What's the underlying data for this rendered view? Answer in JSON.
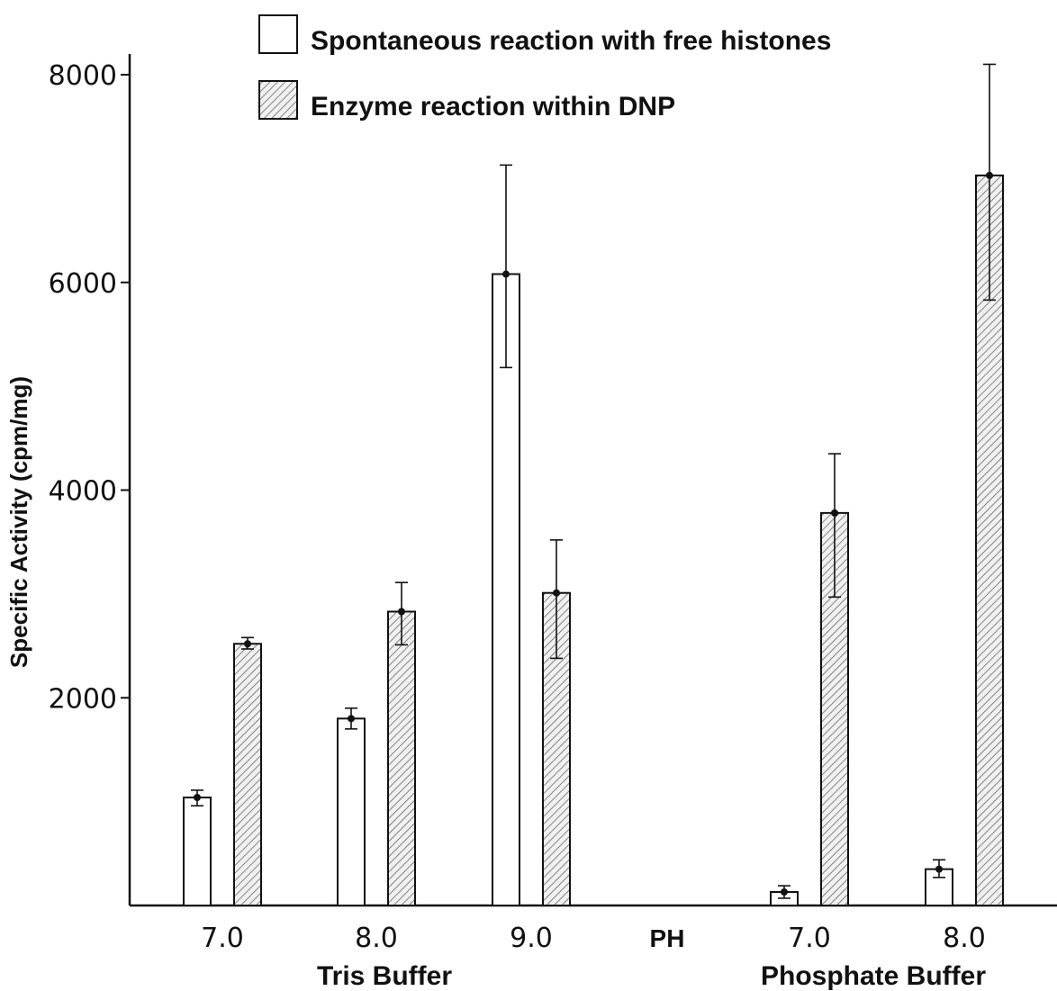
{
  "chart_data": {
    "type": "bar",
    "title": "",
    "xlabel": "PH",
    "ylabel": "Specific Activity (cpm/mg)",
    "ylim": [
      0,
      8000
    ],
    "yticks": [
      2000,
      4000,
      6000,
      8000
    ],
    "grid": false,
    "legend_position": "top-center",
    "groups": [
      {
        "label": "Tris Buffer",
        "categories": [
          "7.0",
          "8.0",
          "9.0"
        ]
      },
      {
        "label": "Phosphate Buffer",
        "categories": [
          "7.0",
          "8.0"
        ]
      }
    ],
    "categories": [
      "7.0",
      "8.0",
      "9.0",
      "7.0",
      "8.0"
    ],
    "series": [
      {
        "name": "Spontaneous reaction with free histones",
        "fill": "#ffffff",
        "values": [
          1040,
          1800,
          6080,
          130,
          350
        ],
        "err_low": [
          960,
          1700,
          5180,
          70,
          270
        ],
        "err_high": [
          1110,
          1900,
          7130,
          190,
          440
        ]
      },
      {
        "name": "Enzyme reaction within DNP",
        "fill": "hatched",
        "values": [
          2520,
          2830,
          3010,
          3780,
          7030
        ],
        "err_low": [
          2470,
          2510,
          2380,
          2970,
          5830
        ],
        "err_high": [
          2580,
          3110,
          3520,
          4350,
          8100
        ]
      }
    ]
  }
}
